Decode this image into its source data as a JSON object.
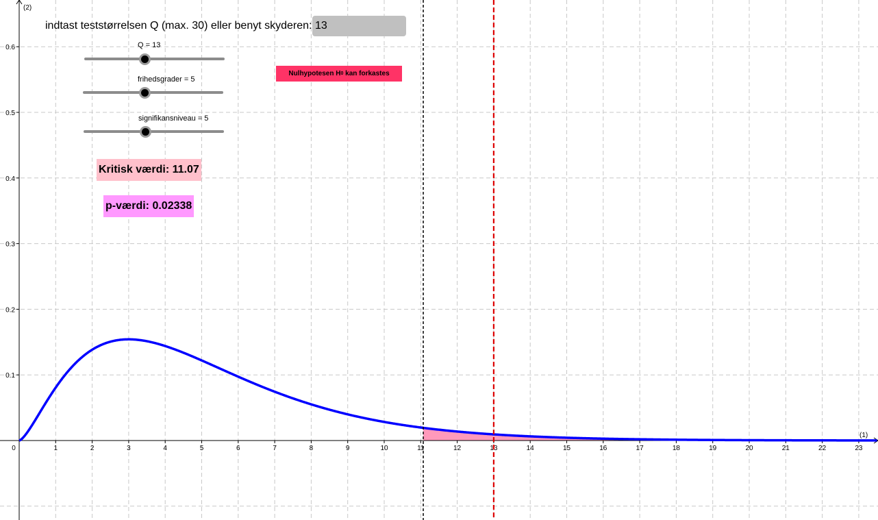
{
  "input": {
    "label": "indtast teststørrelsen Q (max. 30) eller benyt skyderen:",
    "value": "13"
  },
  "sliders": [
    {
      "label": "Q = 13",
      "value": 13,
      "min": 0,
      "max": 30
    },
    {
      "label": "frihedsgrader = 5",
      "value": 5,
      "min": 1,
      "max": 12
    },
    {
      "label": "signifikansniveau = 5",
      "value": 5,
      "min": 1,
      "max": 10
    }
  ],
  "verdict": {
    "text": "Nulhypotesen H",
    "subscript": "0",
    "text_after": "kan forkastes",
    "color": "#ff3366"
  },
  "critical": {
    "text": "Kritisk værdi: 11.07",
    "color": "#ffc0cb"
  },
  "pvalue": {
    "text": "p-værdi: 0.02338",
    "color": "#ff99ff"
  },
  "chart_data": {
    "type": "line",
    "title": "",
    "xlabel": "(1)",
    "ylabel": "(2)",
    "xlim": [
      0,
      23.5
    ],
    "ylim": [
      0,
      0.66
    ],
    "xticks": [
      0,
      1,
      2,
      3,
      4,
      5,
      6,
      7,
      8,
      9,
      10,
      11,
      12,
      13,
      14,
      15,
      16,
      17,
      18,
      19,
      20,
      21,
      22,
      23
    ],
    "yticks": [
      0.1,
      0.2,
      0.3,
      0.4,
      0.5,
      0.6
    ],
    "grid": true,
    "series": [
      {
        "distribution": "chi-square",
        "df": 5,
        "color": "#0000ff"
      }
    ],
    "shaded_region": {
      "from": 11.07,
      "to": 23.5,
      "color": "#ff99bb"
    },
    "vlines": [
      {
        "x": 11.07,
        "color": "#000000",
        "style": "dashed"
      },
      {
        "x": 13,
        "color": "#dd0000",
        "style": "dashed"
      }
    ]
  }
}
